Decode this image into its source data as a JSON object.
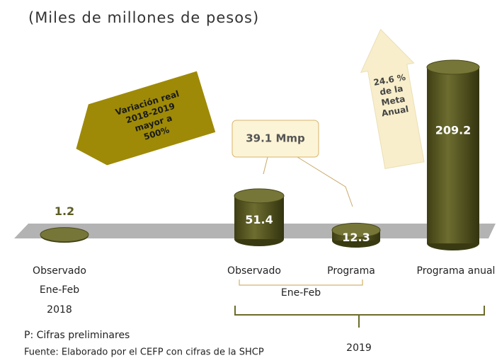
{
  "chart_data": {
    "type": "bar",
    "subtitle": "(Miles de millones de pesos)",
    "categories": [
      "Observado",
      "Observado",
      "Programa",
      "Programa anual"
    ],
    "values": [
      1.2,
      51.4,
      12.3,
      209.2
    ],
    "color": "#5c5c24",
    "first_group": {
      "period": "Ene-Feb",
      "year": "2018"
    },
    "second_group": {
      "period": "Ene-Feb",
      "year": "2019"
    },
    "annotations": {
      "variation": [
        "Variación real",
        "2018-2019",
        "mayor a",
        "500%"
      ],
      "callout": "39.1 Mmp",
      "goal": [
        "24.6 %",
        "de la",
        "Meta",
        "Anual"
      ]
    },
    "notes": [
      "P: Cifras preliminares",
      "Fuente: Elaborado por el CEFP con cifras de la SHCP"
    ]
  }
}
